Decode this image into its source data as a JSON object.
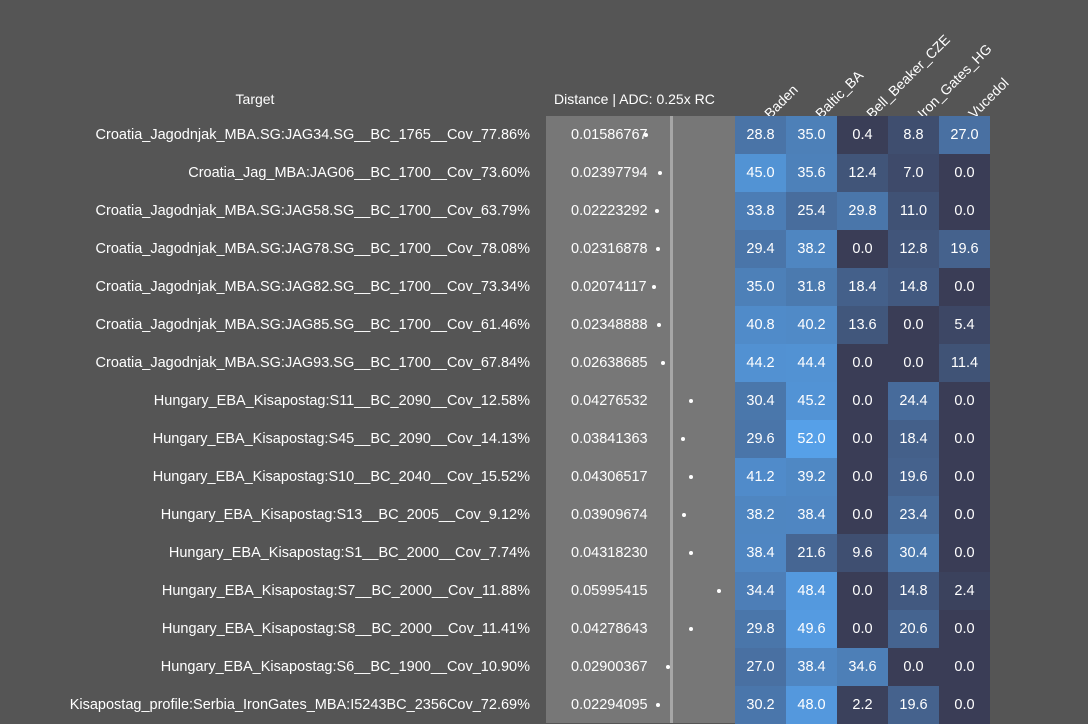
{
  "header": {
    "target_label": "Target",
    "distance_label": "Distance | ADC: 0.25x RC"
  },
  "columns": [
    "Baden",
    "Baltic_BA",
    "Bell_Beaker_CZE",
    "Iron_Gates_HG",
    "Vucedol"
  ],
  "colors": {
    "low": "#3a3d56",
    "high": "#56a0e8",
    "panel": "#777777"
  },
  "chart_data": {
    "type": "table",
    "title": "",
    "columns": [
      "Baden",
      "Baltic_BA",
      "Bell_Beaker_CZE",
      "Iron_Gates_HG",
      "Vucedol"
    ],
    "rows": [
      {
        "target": "Croatia_Jagodnjak_MBA.SG:JAG34.SG__BC_1765__Cov_77.86%",
        "distance": "0.01586767",
        "values": [
          28.8,
          35.0,
          0.4,
          8.8,
          27.0
        ]
      },
      {
        "target": "Croatia_Jag_MBA:JAG06__BC_1700__Cov_73.60%",
        "distance": "0.02397794",
        "values": [
          45.0,
          35.6,
          12.4,
          7.0,
          0.0
        ]
      },
      {
        "target": "Croatia_Jagodnjak_MBA.SG:JAG58.SG__BC_1700__Cov_63.79%",
        "distance": "0.02223292",
        "values": [
          33.8,
          25.4,
          29.8,
          11.0,
          0.0
        ]
      },
      {
        "target": "Croatia_Jagodnjak_MBA.SG:JAG78.SG__BC_1700__Cov_78.08%",
        "distance": "0.02316878",
        "values": [
          29.4,
          38.2,
          0.0,
          12.8,
          19.6
        ]
      },
      {
        "target": "Croatia_Jagodnjak_MBA.SG:JAG82.SG__BC_1700__Cov_73.34%",
        "distance": "0.02074117",
        "values": [
          35.0,
          31.8,
          18.4,
          14.8,
          0.0
        ]
      },
      {
        "target": "Croatia_Jagodnjak_MBA.SG:JAG85.SG__BC_1700__Cov_61.46%",
        "distance": "0.02348888",
        "values": [
          40.8,
          40.2,
          13.6,
          0.0,
          5.4
        ]
      },
      {
        "target": "Croatia_Jagodnjak_MBA.SG:JAG93.SG__BC_1700__Cov_67.84%",
        "distance": "0.02638685",
        "values": [
          44.2,
          44.4,
          0.0,
          0.0,
          11.4
        ]
      },
      {
        "target": "Hungary_EBA_Kisapostag:S11__BC_2090__Cov_12.58%",
        "distance": "0.04276532",
        "values": [
          30.4,
          45.2,
          0.0,
          24.4,
          0.0
        ]
      },
      {
        "target": "Hungary_EBA_Kisapostag:S45__BC_2090__Cov_14.13%",
        "distance": "0.03841363",
        "values": [
          29.6,
          52.0,
          0.0,
          18.4,
          0.0
        ]
      },
      {
        "target": "Hungary_EBA_Kisapostag:S10__BC_2040__Cov_15.52%",
        "distance": "0.04306517",
        "values": [
          41.2,
          39.2,
          0.0,
          19.6,
          0.0
        ]
      },
      {
        "target": "Hungary_EBA_Kisapostag:S13__BC_2005__Cov_9.12%",
        "distance": "0.03909674",
        "values": [
          38.2,
          38.4,
          0.0,
          23.4,
          0.0
        ]
      },
      {
        "target": "Hungary_EBA_Kisapostag:S1__BC_2000__Cov_7.74%",
        "distance": "0.04318230",
        "values": [
          38.4,
          21.6,
          9.6,
          30.4,
          0.0
        ]
      },
      {
        "target": "Hungary_EBA_Kisapostag:S7__BC_2000__Cov_11.88%",
        "distance": "0.05995415",
        "values": [
          34.4,
          48.4,
          0.0,
          14.8,
          2.4
        ]
      },
      {
        "target": "Hungary_EBA_Kisapostag:S8__BC_2000__Cov_11.41%",
        "distance": "0.04278643",
        "values": [
          29.8,
          49.6,
          0.0,
          20.6,
          0.0
        ]
      },
      {
        "target": "Hungary_EBA_Kisapostag:S6__BC_1900__Cov_10.90%",
        "distance": "0.02900367",
        "values": [
          27.0,
          38.4,
          34.6,
          0.0,
          0.0
        ]
      },
      {
        "target": "Kisapostag_profile:Serbia_IronGates_MBA:I5243BC_2356Cov_72.69%",
        "distance": "0.02294095",
        "values": [
          30.2,
          48.0,
          2.2,
          19.6,
          0.0
        ]
      }
    ]
  }
}
